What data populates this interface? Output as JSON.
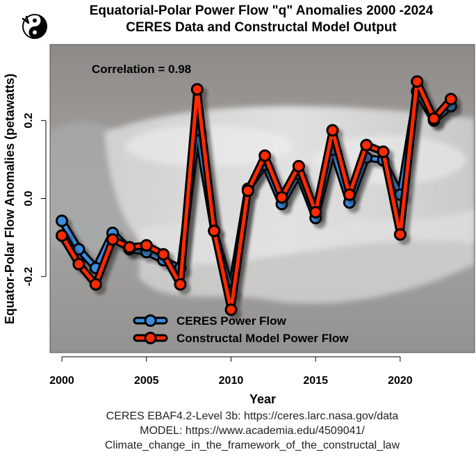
{
  "chart_data": {
    "type": "line",
    "title": "Equatorial-Polar Power Flow \"q\" Anomalies  2000 -2024",
    "subtitle": "CERES Data and Constructal Model Output",
    "xlabel": "Year",
    "ylabel": "Equator-Polar Flow Anomalies (petawatts)",
    "xlim": [
      1999.3,
      2024.4
    ],
    "ylim": [
      -0.395,
      0.395
    ],
    "x_ticks": [
      2000,
      2005,
      2010,
      2015,
      2020
    ],
    "x_tick_labels": [
      "2000",
      "2005",
      "2010",
      "2015",
      "2020"
    ],
    "y_ticks": [
      -0.2,
      0.0,
      0.2
    ],
    "y_tick_labels": [
      "-0.2",
      "0.0",
      "0.2"
    ],
    "annotation": "Correlation = 0.98",
    "legend_position": "bottom-left",
    "x": [
      2000,
      2001,
      2002,
      2003,
      2004,
      2005,
      2006,
      2007,
      2008,
      2009,
      2010,
      2011,
      2012,
      2013,
      2014,
      2015,
      2016,
      2017,
      2018,
      2019,
      2020,
      2021,
      2022,
      2023
    ],
    "series": [
      {
        "name": "CERES Power Flow",
        "color": "#3b8de0",
        "values": [
          -0.057,
          -0.13,
          -0.178,
          -0.088,
          -0.13,
          -0.137,
          -0.158,
          -0.178,
          0.175,
          -0.083,
          -0.235,
          0.025,
          0.087,
          -0.014,
          0.063,
          -0.05,
          0.125,
          -0.01,
          0.105,
          0.098,
          0.01,
          0.275,
          0.2,
          0.237
        ]
      },
      {
        "name": "Constructal Model Power Flow",
        "color": "#ff2a00",
        "values": [
          -0.095,
          -0.168,
          -0.22,
          -0.105,
          -0.125,
          -0.12,
          -0.143,
          -0.22,
          0.28,
          -0.083,
          -0.285,
          0.02,
          0.11,
          0.003,
          0.083,
          -0.035,
          0.175,
          0.01,
          0.137,
          0.12,
          -0.092,
          0.3,
          0.205,
          0.255
        ]
      }
    ]
  },
  "source": {
    "line1": "CERES EBAF4.2-Level 3b: https://ceres.larc.nasa.gov/data",
    "line2": "MODEL: https://www.academia.edu/4509041/",
    "line3": "Climate_change_in_the_framework_of_the_constructal_law"
  },
  "logo": {
    "name": "yin-yang-icon"
  },
  "colors": {
    "shadow": "#000000",
    "background_water": "#8f8f8f"
  }
}
